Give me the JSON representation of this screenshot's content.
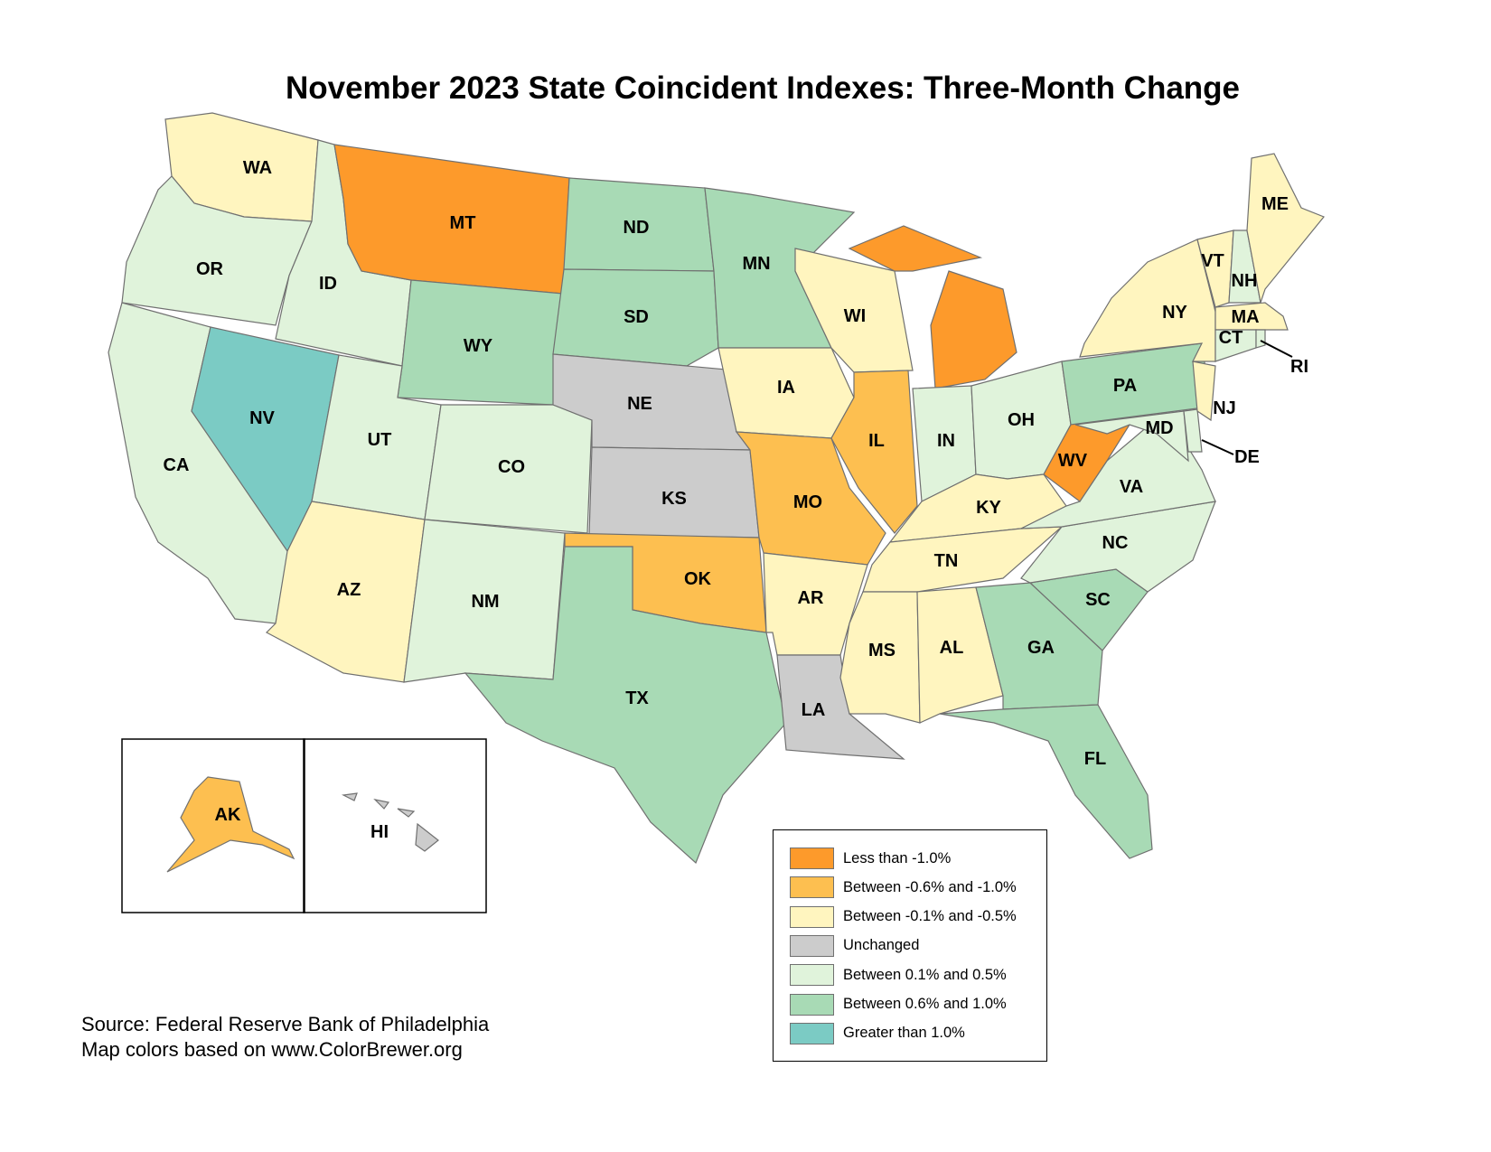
{
  "title": "November 2023 State Coincident Indexes: Three-Month Change",
  "legend": [
    {
      "key": "lt_m1",
      "label": "Less than -1.0%",
      "color": "#fd9a2b"
    },
    {
      "key": "m06_m10",
      "label": "Between -0.6% and -1.0%",
      "color": "#fdbf50"
    },
    {
      "key": "m01_m05",
      "label": "Between -0.1% and -0.5%",
      "color": "#fff5bf"
    },
    {
      "key": "zero",
      "label": "Unchanged",
      "color": "#cccccc"
    },
    {
      "key": "p01_p05",
      "label": "Between 0.1% and 0.5%",
      "color": "#e0f3db"
    },
    {
      "key": "p06_p10",
      "label": "Between 0.6% and 1.0%",
      "color": "#a8dab5"
    },
    {
      "key": "gt_p1",
      "label": "Greater than 1.0%",
      "color": "#7bcbc4"
    }
  ],
  "states": {
    "WA": "m01_m05",
    "OR": "p01_p05",
    "CA": "p01_p05",
    "NV": "gt_p1",
    "ID": "p01_p05",
    "MT": "lt_m1",
    "WY": "p06_p10",
    "UT": "p01_p05",
    "CO": "p01_p05",
    "AZ": "m01_m05",
    "NM": "p01_p05",
    "ND": "p06_p10",
    "SD": "p06_p10",
    "NE": "zero",
    "KS": "zero",
    "OK": "m06_m10",
    "TX": "p06_p10",
    "MN": "p06_p10",
    "IA": "m01_m05",
    "MO": "m06_m10",
    "AR": "m01_m05",
    "LA": "zero",
    "WI": "m01_m05",
    "IL": "m06_m10",
    "MI": "lt_m1",
    "IN": "p01_p05",
    "OH": "p01_p05",
    "KY": "m01_m05",
    "TN": "m01_m05",
    "MS": "m01_m05",
    "AL": "m01_m05",
    "GA": "p06_p10",
    "FL": "p06_p10",
    "SC": "p06_p10",
    "NC": "p01_p05",
    "VA": "p01_p05",
    "WV": "lt_m1",
    "PA": "p06_p10",
    "MD": "p01_p05",
    "DE": "p01_p05",
    "NJ": "m01_m05",
    "NY": "m01_m05",
    "VT": "m01_m05",
    "NH": "p01_p05",
    "ME": "m01_m05",
    "MA": "m01_m05",
    "CT": "p01_p05",
    "RI": "p01_p05",
    "AK": "m06_m10",
    "HI": "zero"
  },
  "source": {
    "line1": "Source: Federal Reserve Bank of Philadelphia",
    "line2": "Map colors based on www.ColorBrewer.org"
  }
}
